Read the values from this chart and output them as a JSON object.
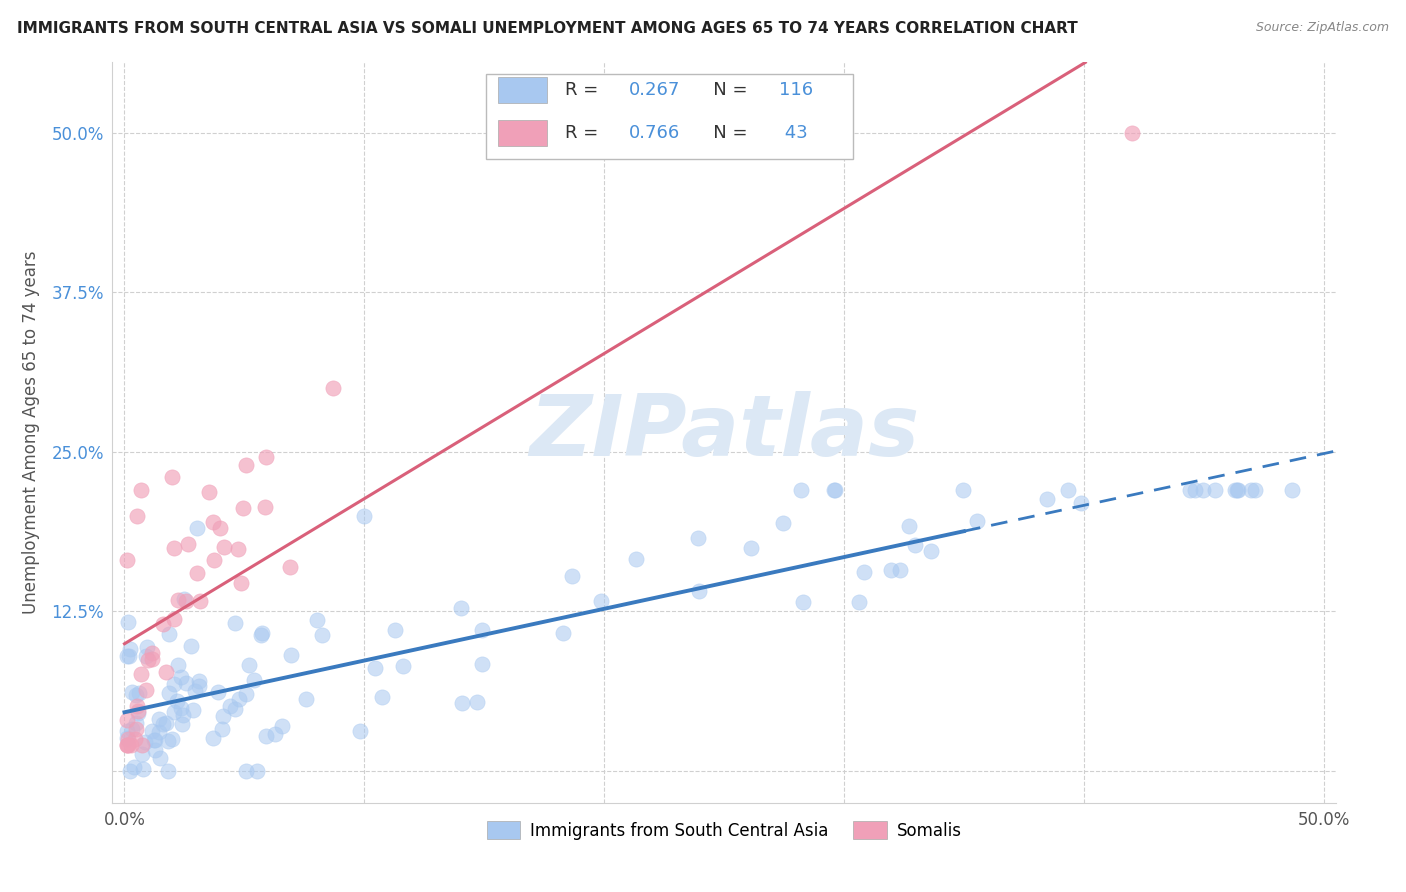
{
  "title": "IMMIGRANTS FROM SOUTH CENTRAL ASIA VS SOMALI UNEMPLOYMENT AMONG AGES 65 TO 74 YEARS CORRELATION CHART",
  "source": "Source: ZipAtlas.com",
  "ylabel": "Unemployment Among Ages 65 to 74 years",
  "xlim": [
    -0.005,
    0.505
  ],
  "ylim": [
    -0.025,
    0.555
  ],
  "xticks": [
    0.0,
    0.1,
    0.2,
    0.3,
    0.4,
    0.5
  ],
  "xticklabels": [
    "0.0%",
    "",
    "",
    "",
    "",
    "50.0%"
  ],
  "yticks": [
    0.0,
    0.125,
    0.25,
    0.375,
    0.5
  ],
  "yticklabels": [
    "",
    "12.5%",
    "25.0%",
    "37.5%",
    "50.0%"
  ],
  "blue_R": 0.267,
  "blue_N": 116,
  "pink_R": 0.766,
  "pink_N": 43,
  "blue_color": "#a8c8f0",
  "pink_color": "#f0a0b8",
  "blue_line_color": "#3a7abf",
  "pink_line_color": "#d9607a",
  "tick_color": "#4a90d9",
  "label_color": "#555555",
  "watermark_color": "#dce8f5",
  "grid_color": "#d0d0d0",
  "background_color": "#ffffff",
  "legend_label_blue": "Immigrants from South Central Asia",
  "legend_label_pink": "Somalis",
  "watermark": "ZIPatlas"
}
